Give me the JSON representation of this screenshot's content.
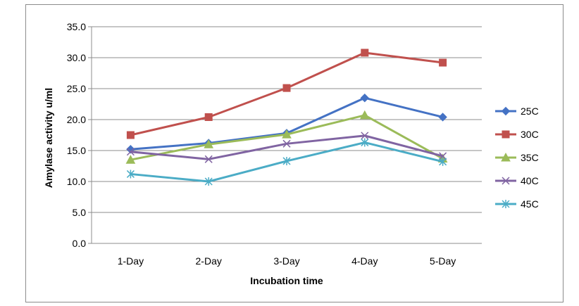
{
  "chart_data": {
    "type": "line",
    "title": "",
    "xlabel": "Incubation time",
    "ylabel": "Amylase activity  u/ml",
    "categories": [
      "1-Day",
      "2-Day",
      "3-Day",
      "4-Day",
      "5-Day"
    ],
    "ylim": [
      0,
      35
    ],
    "yticks": [
      "0.0",
      "5.0",
      "10.0",
      "15.0",
      "20.0",
      "25.0",
      "30.0",
      "35.0"
    ],
    "grid": true,
    "legend_position": "right",
    "series": [
      {
        "name": "25C",
        "color": "#4472C4",
        "marker": "diamond",
        "values": [
          15.2,
          16.2,
          17.8,
          23.5,
          20.4
        ]
      },
      {
        "name": "30C",
        "color": "#C0504D",
        "marker": "square",
        "values": [
          17.5,
          20.4,
          25.1,
          30.8,
          29.2
        ]
      },
      {
        "name": "35C",
        "color": "#9BBB59",
        "marker": "triangle",
        "values": [
          13.5,
          16.0,
          17.6,
          20.7,
          13.7
        ]
      },
      {
        "name": "40C",
        "color": "#8064A2",
        "marker": "x",
        "values": [
          14.8,
          13.6,
          16.1,
          17.4,
          14.1
        ]
      },
      {
        "name": "45C",
        "color": "#4BACC6",
        "marker": "star",
        "values": [
          11.2,
          10.0,
          13.3,
          16.3,
          13.2
        ]
      }
    ]
  }
}
